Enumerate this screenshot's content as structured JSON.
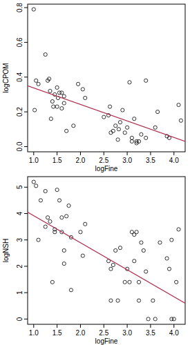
{
  "chart_data": [
    {
      "type": "scatter",
      "x_label": "logFine",
      "y_label": "logCPOM",
      "xlim": [
        0.87,
        4.24
      ],
      "ylim": [
        -0.03,
        0.82
      ],
      "xticks": [
        {
          "value": 1,
          "label": "1.0"
        },
        1.5,
        {
          "value": 2,
          "label": "2.0"
        },
        2.5,
        {
          "value": 3,
          "label": "3.0"
        },
        3.5,
        {
          "value": 4,
          "label": "4.0"
        }
      ],
      "yticks": [
        {
          "value": 0,
          "label": "0.0"
        },
        0.2,
        0.4,
        0.6,
        0.8
      ],
      "series": [
        {
          "type": "scatter",
          "marker": "circle",
          "color": "#000000",
          "x": [
            1.0,
            1.05,
            1.02,
            1.1,
            1.25,
            1.3,
            1.33,
            1.35,
            1.37,
            1.4,
            1.42,
            1.45,
            1.5,
            1.5,
            1.52,
            1.55,
            1.6,
            1.6,
            1.65,
            1.65,
            1.7,
            1.85,
            1.95,
            2.05,
            2.1,
            2.5,
            2.6,
            2.63,
            2.65,
            2.7,
            2.75,
            2.8,
            2.82,
            2.85,
            2.9,
            2.95,
            3.0,
            3.05,
            3.1,
            3.15,
            3.1,
            3.2,
            3.2,
            3.25,
            3.3,
            3.4,
            3.4,
            3.6,
            3.65,
            3.85,
            3.9,
            4.1,
            4.15
          ],
          "values": [
            0.79,
            0.38,
            0.21,
            0.36,
            0.53,
            0.38,
            0.39,
            0.32,
            0.16,
            0.26,
            0.23,
            0.3,
            0.34,
            0.23,
            0.28,
            0.31,
            0.22,
            0.31,
            0.29,
            0.25,
            0.09,
            0.12,
            0.36,
            0.33,
            0.28,
            0.17,
            0.18,
            0.23,
            0.08,
            0.09,
            0.12,
            0.04,
            0.1,
            0.14,
            0.21,
            0.08,
            0.11,
            0.37,
            0.05,
            0.16,
            0.03,
            0.02,
            0.03,
            0.03,
            0.07,
            0.38,
            0.05,
            0.11,
            0.2,
            0.06,
            0.05,
            0.24,
            0.15
          ]
        },
        {
          "type": "line",
          "line_style": "solid",
          "color": "#b03050",
          "x": [
            0.87,
            4.24
          ],
          "values": [
            0.35,
            0.03
          ]
        }
      ]
    },
    {
      "type": "scatter",
      "x_label": "logFine",
      "y_label": "logNSH",
      "xlim": [
        0.87,
        4.24
      ],
      "ylim": [
        -0.2,
        5.4
      ],
      "xticks": [
        {
          "value": 1,
          "label": "1.0"
        },
        1.5,
        {
          "value": 2,
          "label": "2.0"
        },
        2.5,
        {
          "value": 3,
          "label": "3.0"
        },
        3.5,
        {
          "value": 4,
          "label": "4.0"
        }
      ],
      "yticks": [
        0,
        1,
        2,
        3,
        4,
        5
      ],
      "series": [
        {
          "type": "scatter",
          "marker": "circle",
          "color": "#000000",
          "x": [
            1.0,
            1.05,
            1.15,
            1.25,
            1.1,
            1.25,
            1.3,
            1.35,
            1.4,
            1.45,
            1.45,
            1.5,
            1.55,
            1.6,
            1.6,
            1.65,
            1.65,
            1.7,
            1.75,
            1.8,
            1.8,
            2.0,
            2.05,
            2.1,
            2.6,
            2.65,
            2.7,
            2.65,
            2.75,
            2.8,
            2.85,
            2.95,
            3.0,
            3.05,
            3.1,
            3.15,
            3.15,
            3.2,
            3.25,
            3.3,
            3.25,
            3.35,
            3.4,
            3.45,
            3.55,
            3.6,
            3.7,
            3.85,
            3.9,
            3.95,
            4.0,
            4.05,
            4.1,
            3.95
          ],
          "values": [
            5.2,
            5.05,
            4.5,
            4.85,
            3.0,
            3.5,
            3.85,
            3.7,
            1.4,
            3.4,
            3.3,
            4.9,
            4.5,
            3.85,
            3.3,
            2.1,
            2.6,
            3.9,
            4.3,
            1.1,
            3.1,
            3.3,
            2.4,
            3.6,
            2.2,
            1.9,
            2.05,
            0.7,
            2.6,
            0.7,
            2.7,
            1.4,
            1.9,
            1.4,
            3.3,
            3.2,
            2.2,
            3.3,
            1.4,
            2.9,
            0.7,
            2.6,
            1.8,
            0.0,
            0.7,
            0.0,
            2.9,
            2.3,
            1.9,
            0.0,
            0.0,
            1.4,
            3.4,
            3.0
          ]
        },
        {
          "type": "line",
          "line_style": "solid",
          "color": "#b03050",
          "x": [
            0.87,
            4.24
          ],
          "values": [
            4.05,
            0.6
          ]
        }
      ]
    }
  ]
}
